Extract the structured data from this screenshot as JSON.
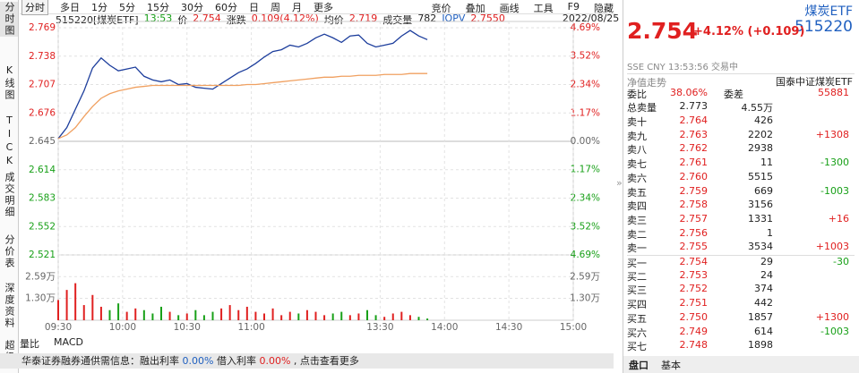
{
  "toolbar": {
    "tabs": [
      "分时",
      "多日",
      "1分",
      "5分",
      "15分",
      "30分",
      "60分",
      "日",
      "周",
      "月",
      "更多"
    ],
    "tools": [
      "竞价",
      "叠加",
      "画线",
      "工具",
      "F9",
      "隐藏"
    ]
  },
  "side_tabs": [
    "分时图",
    "K线图",
    "TICK",
    "成交明细",
    "分价表",
    "深度资料",
    "超级"
  ],
  "info_bar": {
    "code": "515220[煤炭ETF]",
    "time": "13:53",
    "price_label": "价",
    "price": "2.754",
    "change_label": "涨跌",
    "change": "0.109(4.12%)",
    "avg_label": "均价",
    "avg": "2.719",
    "vol_label": "成交量",
    "vol": "782",
    "iopv_label": "IOPV",
    "iopv": "2.7550",
    "date": "2022/08/25"
  },
  "chart_data": [
    {
      "type": "line",
      "x": [
        0,
        4,
        8,
        12,
        16,
        20,
        24,
        28,
        32,
        36,
        40,
        44,
        48,
        52,
        56,
        60,
        64,
        68,
        72,
        76,
        80,
        84,
        88,
        92,
        96,
        100,
        104,
        108,
        112,
        116,
        120,
        124,
        128,
        132,
        136,
        140,
        144,
        148,
        152,
        156,
        160,
        164,
        168,
        172
      ],
      "series": [
        {
          "color": "#1c3d9c",
          "values": [
            2.648,
            2.66,
            2.68,
            2.7,
            2.725,
            2.736,
            2.728,
            2.722,
            2.724,
            2.726,
            2.716,
            2.712,
            2.71,
            2.712,
            2.707,
            2.708,
            2.704,
            2.703,
            2.702,
            2.708,
            2.714,
            2.72,
            2.724,
            2.73,
            2.737,
            2.743,
            2.745,
            2.75,
            2.748,
            2.752,
            2.758,
            2.762,
            2.758,
            2.753,
            2.76,
            2.761,
            2.752,
            2.748,
            2.75,
            2.752,
            2.76,
            2.766,
            2.76,
            2.756
          ]
        },
        {
          "color": "#f0a060",
          "values": [
            2.648,
            2.652,
            2.66,
            2.672,
            2.683,
            2.692,
            2.697,
            2.7,
            2.702,
            2.704,
            2.705,
            2.706,
            2.706,
            2.706,
            2.706,
            2.706,
            2.706,
            2.706,
            2.706,
            2.706,
            2.706,
            2.706,
            2.707,
            2.707,
            2.708,
            2.709,
            2.71,
            2.711,
            2.712,
            2.713,
            2.714,
            2.715,
            2.715,
            2.716,
            2.716,
            2.717,
            2.717,
            2.717,
            2.718,
            2.718,
            2.718,
            2.719,
            2.719,
            2.719
          ]
        }
      ],
      "ylim": [
        2.521,
        2.769
      ],
      "yticks": [
        2.769,
        2.738,
        2.707,
        2.676,
        2.645,
        2.614,
        2.583,
        2.552,
        2.521
      ],
      "y2lim": [
        -4.69,
        4.69
      ],
      "y2ticks": [
        {
          "value": 4.69,
          "label": "4.69%"
        },
        {
          "value": 3.52,
          "label": "3.52%"
        },
        {
          "value": 2.34,
          "label": "2.34%"
        },
        {
          "value": 1.17,
          "label": "1.17%"
        },
        {
          "value": 0,
          "label": "0.00%"
        },
        {
          "value": -1.17,
          "label": "1.17%"
        },
        {
          "value": -2.34,
          "label": "2.34%"
        },
        {
          "value": -3.52,
          "label": "3.52%"
        },
        {
          "value": -4.69,
          "label": "4.69%"
        }
      ],
      "grid": true
    },
    {
      "type": "bar",
      "x": [
        0,
        4,
        8,
        12,
        16,
        20,
        24,
        28,
        32,
        36,
        40,
        44,
        48,
        52,
        56,
        60,
        64,
        68,
        72,
        76,
        80,
        84,
        88,
        92,
        96,
        100,
        104,
        108,
        112,
        116,
        120,
        124,
        128,
        132,
        136,
        140,
        144,
        148,
        152,
        156,
        160,
        164,
        168,
        172
      ],
      "values": [
        12000,
        18000,
        22000,
        9000,
        15000,
        8000,
        6000,
        10000,
        5000,
        7000,
        6000,
        4000,
        8000,
        5000,
        3000,
        4000,
        6000,
        3000,
        5000,
        7000,
        9000,
        6000,
        8000,
        5000,
        4000,
        7000,
        3000,
        5000,
        4000,
        6000,
        5000,
        3000,
        4000,
        5000,
        3000,
        4000,
        6000,
        3000,
        2000,
        4000,
        5000,
        3000,
        2000,
        1000
      ],
      "up_color": "#e02020",
      "down_color": "#18a018",
      "ylim": [
        0,
        38800
      ],
      "yticks": [
        {
          "value": 25900,
          "label": "2.59万"
        },
        {
          "value": 13000,
          "label": "1.30万"
        }
      ],
      "xlim": [
        0,
        240
      ],
      "xticks": [
        {
          "value": 0,
          "label": "09:30"
        },
        {
          "value": 30,
          "label": "10:00"
        },
        {
          "value": 60,
          "label": "10:30"
        },
        {
          "value": 90,
          "label": "11:00"
        },
        {
          "value": 150,
          "label": "13:30"
        },
        {
          "value": 180,
          "label": "14:00"
        },
        {
          "value": 210,
          "label": "14:30"
        },
        {
          "value": 240,
          "label": "15:00"
        }
      ]
    }
  ],
  "bottom_tabs": [
    "量比",
    "MACD"
  ],
  "notice": {
    "text": "华泰证券融券通供需信息：融出利率",
    "rate1": "0.00%",
    "mid": "借入利率",
    "rate2": "0.00%",
    "link": ", 点击查看更多"
  },
  "quote_panel": {
    "name": "煤炭ETF",
    "code": "515220",
    "price": "2.754",
    "change": "+4.12% (+0.109)",
    "status": "SSE  CNY  13:53:56  交易中",
    "nav_label": "净值走势",
    "fund": "国泰中证煤炭ETF",
    "ratio_row": [
      "委比",
      "38.06%",
      "委差",
      "55881"
    ],
    "sell_total": [
      "总卖量",
      "2.773",
      "4.55万"
    ],
    "rows": [
      [
        "卖十",
        "2.764",
        "426"
      ],
      [
        "卖九",
        "2.763",
        "2202",
        "+1308"
      ],
      [
        "卖八",
        "2.762",
        "2938"
      ],
      [
        "卖七",
        "2.761",
        "11",
        "-1300"
      ],
      [
        "卖六",
        "2.760",
        "5515"
      ],
      [
        "卖五",
        "2.759",
        "669",
        "-1003"
      ],
      [
        "卖四",
        "2.758",
        "3156"
      ],
      [
        "卖三",
        "2.757",
        "1331",
        "+16"
      ],
      [
        "卖二",
        "2.756",
        "1"
      ],
      [
        "卖一",
        "2.755",
        "3534",
        "+1003"
      ],
      [
        "买一",
        "2.754",
        "29",
        "-30"
      ],
      [
        "买二",
        "2.753",
        "24"
      ],
      [
        "买三",
        "2.752",
        "374"
      ],
      [
        "买四",
        "2.751",
        "442"
      ],
      [
        "买五",
        "2.750",
        "1857",
        "+1300"
      ],
      [
        "买六",
        "2.749",
        "614",
        "-1003"
      ],
      [
        "买七",
        "2.748",
        "1898"
      ]
    ],
    "tabs": [
      "盘口",
      "基本"
    ]
  }
}
